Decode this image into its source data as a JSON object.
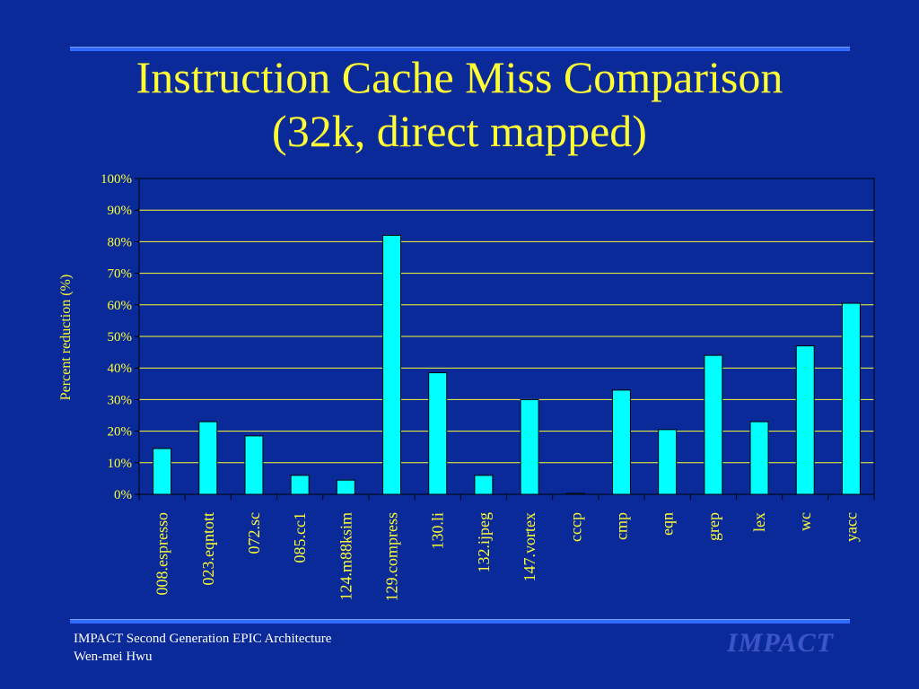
{
  "slide": {
    "title_line1": "Instruction Cache Miss Comparison",
    "title_line2": "(32k, direct mapped)",
    "footer_line1": "IMPACT Second Generation EPIC Architecture",
    "footer_line2": "Wen-mei Hwu",
    "logo_text": "IMPACT"
  },
  "colors": {
    "background": "#0a2a9a",
    "bar": "#00ffff",
    "gridline": "#ffff33",
    "text": "#ffff33"
  },
  "chart_data": {
    "type": "bar",
    "ylabel": "Percent reduction (%)",
    "ylim": [
      0,
      100
    ],
    "yticks": [
      "0%",
      "10%",
      "20%",
      "30%",
      "40%",
      "50%",
      "60%",
      "70%",
      "80%",
      "90%",
      "100%"
    ],
    "grid": true,
    "categories": [
      "008.espresso",
      "023.eqntott",
      "072.sc",
      "085.cc1",
      "124.m88ksim",
      "129.compress",
      "130.li",
      "132.ijpeg",
      "147.vortex",
      "cccp",
      "cmp",
      "eqn",
      "grep",
      "lex",
      "wc",
      "yacc"
    ],
    "values": [
      14.5,
      23,
      18.5,
      6,
      4.5,
      82,
      38.5,
      6,
      30,
      0.3,
      33,
      20.5,
      44,
      23,
      47,
      60.5
    ]
  }
}
